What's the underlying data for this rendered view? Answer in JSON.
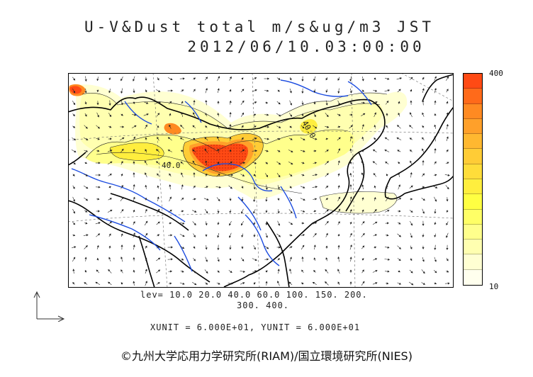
{
  "title": {
    "line1": "U-V&Dust total m/s&ug/m3 JST",
    "line2": "2012/06/10.03:00:00"
  },
  "colorbar": {
    "max_label": "400",
    "min_label": "10",
    "colors": [
      "#ff4a14",
      "#ff6a1a",
      "#ff8a22",
      "#ffa02a",
      "#ffb830",
      "#ffcc36",
      "#ffdd3a",
      "#ffee3e",
      "#ffff42",
      "#ffff66",
      "#ffff8c",
      "#ffffb0",
      "#ffffd2",
      "#ffffee"
    ]
  },
  "levels": {
    "line1": "lev= 10.0 20.0 40.0 60.0 100. 150. 200.",
    "line2": "300. 400."
  },
  "units_text": "XUNIT = 6.000E+01, YUNIT = 6.000E+01",
  "contour_labels": [
    "40.0",
    "40.0"
  ],
  "copyright": "©九州大学応用力学研究所(RIAM)/国立環境研究所(NIES)",
  "icons": [
    "wind-vector-arrow-icon",
    "axis-key-icon"
  ]
}
